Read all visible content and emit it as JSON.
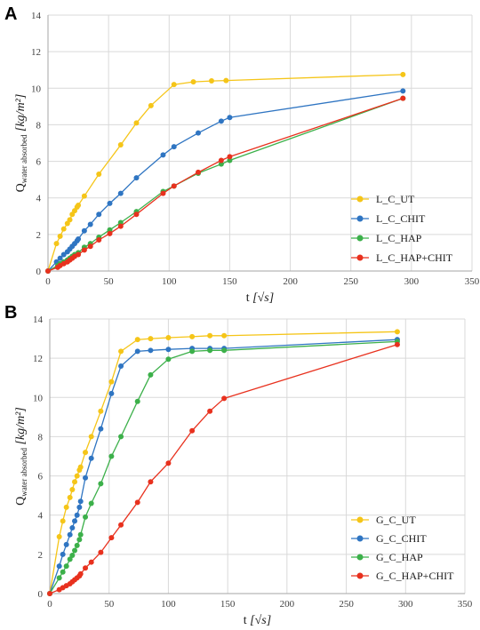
{
  "chart_data": [
    {
      "panel_label": "A",
      "type": "line",
      "xlabel": "t [√s]",
      "ylabel": "Q_water absorbed [kg/m²]",
      "ylabel_main": "Q",
      "ylabel_sub": "water absorbed",
      "ylabel_unit": "[kg/m²]",
      "xlabel_main": "t",
      "xlabel_unit": "[√s]",
      "xlim": [
        0,
        350
      ],
      "ylim": [
        0,
        14
      ],
      "x_ticks": [
        0,
        50,
        100,
        150,
        200,
        250,
        300,
        350
      ],
      "y_ticks": [
        0,
        2,
        4,
        6,
        8,
        10,
        12,
        14
      ],
      "grid": true,
      "legend_position": "right",
      "series": [
        {
          "name": "L_C_UT",
          "color": "#f5c518",
          "x": [
            0,
            7,
            10,
            13,
            16,
            18,
            20,
            22,
            24,
            25,
            30,
            42,
            60,
            73,
            85,
            104,
            120,
            135,
            147,
            293
          ],
          "y": [
            0,
            1.5,
            1.9,
            2.3,
            2.6,
            2.8,
            3.1,
            3.3,
            3.5,
            3.6,
            4.1,
            5.3,
            6.9,
            8.1,
            9.05,
            10.2,
            10.35,
            10.4,
            10.42,
            10.75
          ]
        },
        {
          "name": "L_C_CHIT",
          "color": "#2f75c2",
          "x": [
            0,
            7,
            10,
            13,
            16,
            18,
            20,
            22,
            24,
            25,
            30,
            35,
            42,
            51,
            60,
            73,
            95,
            104,
            124,
            143,
            150,
            293
          ],
          "y": [
            0,
            0.5,
            0.7,
            0.9,
            1.05,
            1.2,
            1.35,
            1.5,
            1.65,
            1.75,
            2.2,
            2.55,
            3.1,
            3.7,
            4.25,
            5.1,
            6.35,
            6.8,
            7.55,
            8.2,
            8.4,
            9.85
          ]
        },
        {
          "name": "L_C_HAP",
          "color": "#3cb04a",
          "x": [
            0,
            8,
            10,
            13,
            16,
            18,
            20,
            22,
            25,
            30,
            35,
            42,
            51,
            60,
            73,
            95,
            104,
            124,
            143,
            150,
            293
          ],
          "y": [
            0,
            0.3,
            0.4,
            0.5,
            0.6,
            0.7,
            0.8,
            0.9,
            1.0,
            1.3,
            1.5,
            1.85,
            2.25,
            2.65,
            3.25,
            4.35,
            4.65,
            5.35,
            5.85,
            6.05,
            9.45
          ]
        },
        {
          "name": "L_C_HAP+CHIT",
          "color": "#e8311e",
          "x": [
            0,
            8,
            10,
            13,
            16,
            18,
            20,
            22,
            25,
            30,
            35,
            42,
            51,
            60,
            73,
            95,
            104,
            124,
            143,
            150,
            293
          ],
          "y": [
            0,
            0.2,
            0.3,
            0.4,
            0.5,
            0.6,
            0.7,
            0.8,
            0.9,
            1.15,
            1.35,
            1.7,
            2.05,
            2.45,
            3.1,
            4.25,
            4.65,
            5.4,
            6.05,
            6.25,
            9.45
          ]
        }
      ]
    },
    {
      "panel_label": "B",
      "type": "line",
      "xlabel": "t [√s]",
      "ylabel": "Q_water absorbed [kg/m²]",
      "ylabel_main": "Q",
      "ylabel_sub": "water absorbed",
      "ylabel_unit": "[kg/m²]",
      "xlabel_main": "t",
      "xlabel_unit": "[√s]",
      "xlim": [
        0,
        350
      ],
      "ylim": [
        0,
        14
      ],
      "x_ticks": [
        0,
        50,
        100,
        150,
        200,
        250,
        300,
        350
      ],
      "y_ticks": [
        0,
        2,
        4,
        6,
        8,
        10,
        12,
        14
      ],
      "grid": true,
      "legend_position": "right",
      "series": [
        {
          "name": "G_C_UT",
          "color": "#f5c518",
          "x": [
            0,
            8,
            11,
            14,
            17,
            19,
            21,
            23,
            25,
            26,
            30,
            35,
            43,
            52,
            60,
            74,
            85,
            100,
            120,
            135,
            147,
            293
          ],
          "y": [
            0,
            2.9,
            3.7,
            4.4,
            4.9,
            5.3,
            5.7,
            6.0,
            6.3,
            6.45,
            7.2,
            8.0,
            9.3,
            10.8,
            12.35,
            12.95,
            13.0,
            13.05,
            13.1,
            13.15,
            13.15,
            13.35
          ]
        },
        {
          "name": "G_C_CHIT",
          "color": "#2f75c2",
          "x": [
            0,
            8,
            11,
            14,
            17,
            19,
            21,
            23,
            25,
            26,
            30,
            35,
            43,
            52,
            60,
            74,
            85,
            100,
            120,
            135,
            147,
            293
          ],
          "y": [
            0,
            1.4,
            2.0,
            2.5,
            3.0,
            3.35,
            3.7,
            4.0,
            4.4,
            4.7,
            5.9,
            6.9,
            8.4,
            10.2,
            11.6,
            12.35,
            12.4,
            12.45,
            12.5,
            12.5,
            12.5,
            12.95
          ]
        },
        {
          "name": "G_C_HAP",
          "color": "#3cb04a",
          "x": [
            0,
            8,
            11,
            14,
            17,
            19,
            21,
            23,
            25,
            26,
            30,
            35,
            43,
            52,
            60,
            74,
            85,
            100,
            120,
            135,
            147,
            293
          ],
          "y": [
            0,
            0.8,
            1.1,
            1.4,
            1.75,
            1.95,
            2.2,
            2.45,
            2.75,
            3.0,
            3.9,
            4.6,
            5.6,
            7.0,
            8.0,
            9.8,
            11.15,
            11.95,
            12.35,
            12.4,
            12.4,
            12.85
          ]
        },
        {
          "name": "G_C_HAP+CHIT",
          "color": "#e8311e",
          "x": [
            0,
            8,
            11,
            14,
            17,
            19,
            21,
            23,
            25,
            26,
            30,
            35,
            43,
            52,
            60,
            74,
            85,
            100,
            120,
            135,
            147,
            293
          ],
          "y": [
            0,
            0.2,
            0.3,
            0.4,
            0.5,
            0.6,
            0.7,
            0.8,
            0.9,
            1.0,
            1.3,
            1.6,
            2.1,
            2.85,
            3.5,
            4.65,
            5.7,
            6.65,
            8.3,
            9.3,
            9.95,
            12.7
          ]
        }
      ]
    }
  ]
}
